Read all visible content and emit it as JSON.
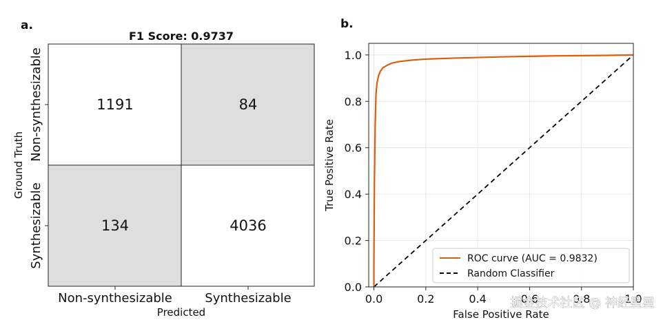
{
  "panels": {
    "a_label": "a.",
    "b_label": "b."
  },
  "chart_data": [
    {
      "type": "heatmap",
      "title": "F1 Score: 0.9737",
      "xlabel": "Predicted",
      "ylabel": "Ground Truth",
      "x_categories": [
        "Non-synthesizable",
        "Synthesizable"
      ],
      "y_categories": [
        "Non-synthesizable",
        "Synthesizable"
      ],
      "values": [
        [
          1191,
          84
        ],
        [
          134,
          4036
        ]
      ],
      "colors": {
        "correct": "#ffffff",
        "error": "#dedede"
      }
    },
    {
      "type": "line",
      "xlabel": "False Positive Rate",
      "ylabel": "True Positive Rate",
      "xlim": [
        -0.02,
        1.0
      ],
      "ylim": [
        0.0,
        1.05
      ],
      "x_ticks": [
        "0.0",
        "0.2",
        "0.4",
        "0.6",
        "0.8",
        "1.0"
      ],
      "y_ticks": [
        "0.0",
        "0.2",
        "0.4",
        "0.6",
        "0.8",
        "1.0"
      ],
      "grid": true,
      "legend_position": "bottom-right",
      "series": [
        {
          "name": "ROC curve (AUC = 0.9832)",
          "color": "#d95f0e",
          "style": "solid",
          "x": [
            0.0,
            0.0,
            0.002,
            0.005,
            0.008,
            0.012,
            0.018,
            0.025,
            0.035,
            0.05,
            0.07,
            0.1,
            0.15,
            0.2,
            0.3,
            0.4,
            0.5,
            0.6,
            0.7,
            0.8,
            0.9,
            1.0
          ],
          "y": [
            0.0,
            0.1,
            0.45,
            0.7,
            0.83,
            0.88,
            0.91,
            0.93,
            0.945,
            0.955,
            0.965,
            0.972,
            0.978,
            0.982,
            0.986,
            0.989,
            0.992,
            0.994,
            0.996,
            0.997,
            0.998,
            1.0
          ]
        },
        {
          "name": "Random Classifier",
          "color": "#000000",
          "style": "dashed",
          "x": [
            0.0,
            1.0
          ],
          "y": [
            0.0,
            1.0
          ]
        }
      ]
    }
  ],
  "watermark": "掘金技术社区 @ 神经星星"
}
